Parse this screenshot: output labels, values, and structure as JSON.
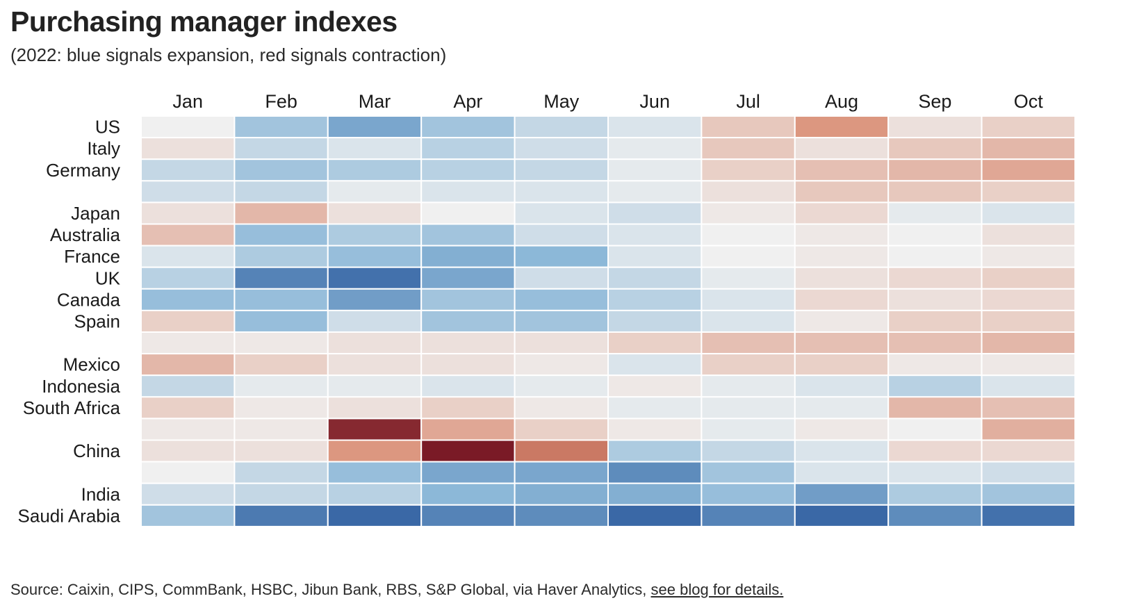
{
  "header": {
    "title": "Purchasing manager indexes",
    "subtitle": "(2022: blue signals expansion, red signals contraction)"
  },
  "footer": {
    "source_text": "Source: Caixin, CIPS, CommBank, HSBC, Jibun Bank, RBS, S&P Global, via Haver Analytics, ",
    "link_text": "see blog for details."
  },
  "chart_data": {
    "type": "heatmap",
    "title": "Purchasing manager indexes",
    "subtitle": "(2022: blue signals expansion, red signals contraction)",
    "x_labels": [
      "Jan",
      "Feb",
      "Mar",
      "Apr",
      "May",
      "Jun",
      "Jul",
      "Aug",
      "Sep",
      "Oct"
    ],
    "y_labels": [
      "US",
      "Italy",
      "Germany",
      "",
      "Japan",
      "Australia",
      "France",
      "UK",
      "Canada",
      "Spain",
      "",
      "Mexico",
      "Indonesia",
      "South Africa",
      "",
      "China",
      "",
      "India",
      "Saudi Arabia"
    ],
    "value_meaning": "approximate PMI level; above 50 = expansion (blue), below 50 = contraction (red)",
    "color_scale": {
      "low": "#7a1a26",
      "mid_low": "#d98a70",
      "center": "#f0f0f0",
      "mid_high": "#8cb8d8",
      "high": "#3a68a6",
      "center_value": 50
    },
    "values": [
      [
        50.0,
        53.5,
        55.5,
        53.5,
        52.0,
        51.0,
        47.5,
        44.5,
        49.0,
        48.0
      ],
      [
        49.0,
        52.0,
        51.0,
        52.5,
        51.5,
        50.5,
        47.5,
        49.0,
        47.5,
        46.5
      ],
      [
        52.0,
        53.5,
        53.0,
        52.5,
        52.0,
        50.5,
        48.0,
        47.0,
        46.5,
        45.5
      ],
      [
        51.5,
        52.0,
        50.5,
        51.0,
        51.0,
        50.5,
        49.0,
        47.5,
        47.5,
        48.0
      ],
      [
        49.0,
        46.5,
        49.0,
        50.0,
        51.0,
        51.5,
        49.5,
        48.5,
        50.5,
        51.0
      ],
      [
        47.0,
        54.0,
        53.0,
        53.5,
        51.5,
        51.0,
        50.0,
        49.5,
        50.0,
        49.0
      ],
      [
        51.0,
        53.0,
        54.0,
        55.0,
        54.5,
        51.0,
        50.0,
        49.5,
        50.0,
        49.5
      ],
      [
        52.5,
        57.5,
        58.5,
        55.5,
        51.5,
        52.0,
        50.5,
        49.0,
        48.5,
        48.0
      ],
      [
        54.0,
        54.0,
        56.0,
        53.5,
        54.0,
        52.5,
        51.0,
        48.5,
        49.0,
        48.5
      ],
      [
        48.0,
        54.0,
        51.5,
        53.5,
        53.5,
        52.0,
        51.0,
        49.5,
        48.0,
        48.0
      ],
      [
        49.5,
        49.5,
        49.0,
        49.0,
        49.0,
        48.0,
        47.0,
        47.0,
        47.0,
        46.5
      ],
      [
        46.5,
        48.0,
        49.0,
        49.0,
        49.5,
        51.0,
        48.0,
        48.0,
        49.5,
        49.5
      ],
      [
        52.0,
        50.5,
        50.5,
        51.0,
        50.5,
        49.5,
        50.5,
        51.0,
        52.5,
        51.0
      ],
      [
        48.0,
        49.5,
        49.0,
        48.0,
        49.5,
        50.5,
        50.5,
        50.5,
        46.5,
        47.0
      ],
      [
        49.5,
        49.5,
        37.0,
        45.5,
        48.0,
        49.5,
        50.5,
        49.5,
        50.0,
        46.0
      ],
      [
        49.0,
        49.0,
        44.5,
        36.0,
        42.5,
        53.0,
        52.0,
        51.0,
        48.5,
        48.5
      ],
      [
        50.0,
        52.0,
        54.0,
        55.5,
        55.5,
        57.0,
        53.5,
        51.0,
        51.0,
        51.5
      ],
      [
        51.5,
        52.0,
        52.5,
        54.5,
        55.0,
        55.0,
        54.0,
        56.0,
        53.0,
        53.5
      ],
      [
        53.5,
        58.0,
        60.5,
        57.5,
        57.0,
        59.5,
        57.5,
        59.5,
        57.0,
        58.5
      ]
    ]
  }
}
